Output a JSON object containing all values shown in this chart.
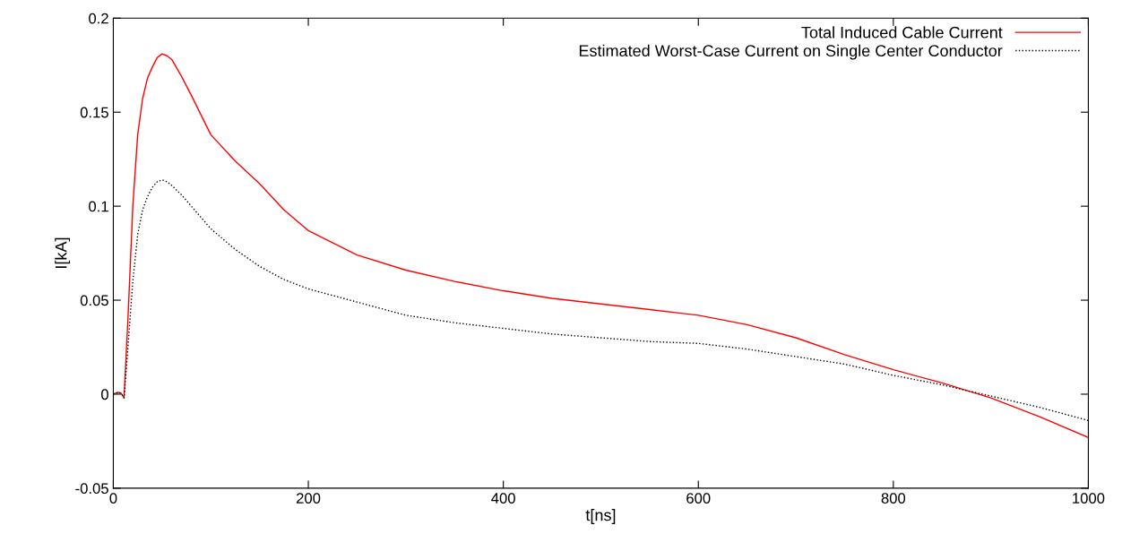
{
  "chart_data": {
    "type": "line",
    "xlabel": "t[ns]",
    "ylabel": "I[kA]",
    "xlim": [
      0,
      1000
    ],
    "ylim": [
      -0.05,
      0.2
    ],
    "xticks": [
      0,
      200,
      400,
      600,
      800,
      1000
    ],
    "yticks": [
      -0.05,
      0,
      0.05,
      0.1,
      0.15,
      0.2
    ],
    "grid": false,
    "legend": "top right",
    "marker": "none",
    "series": [
      {
        "name": "Total Induced Cable Current",
        "color": "#ff0000",
        "line_style": "solid",
        "x": [
          0,
          5,
          8,
          11,
          15,
          20,
          25,
          30,
          35,
          40,
          45,
          50,
          55,
          60,
          70,
          80,
          100,
          125,
          150,
          175,
          200,
          250,
          300,
          350,
          400,
          450,
          500,
          550,
          600,
          650,
          700,
          750,
          800,
          850,
          900,
          950,
          1000
        ],
        "values": [
          0,
          0.001,
          0.0005,
          -0.002,
          0.04,
          0.1,
          0.138,
          0.157,
          0.168,
          0.174,
          0.179,
          0.181,
          0.18,
          0.178,
          0.169,
          0.159,
          0.138,
          0.124,
          0.112,
          0.098,
          0.087,
          0.074,
          0.066,
          0.06,
          0.055,
          0.051,
          0.048,
          0.045,
          0.042,
          0.037,
          0.03,
          0.021,
          0.013,
          0.006,
          -0.002,
          -0.012,
          -0.023
        ]
      },
      {
        "name": "Estimated Worst-Case Current on Single Center Conductor",
        "color": "#000000",
        "line_style": "dotted",
        "x": [
          0,
          5,
          8,
          11,
          15,
          20,
          25,
          30,
          35,
          40,
          45,
          50,
          55,
          60,
          70,
          80,
          100,
          125,
          150,
          175,
          200,
          250,
          300,
          350,
          400,
          450,
          500,
          550,
          600,
          650,
          700,
          750,
          800,
          850,
          900,
          950,
          1000
        ],
        "values": [
          0,
          0.001,
          0.0005,
          -0.002,
          0.025,
          0.06,
          0.085,
          0.098,
          0.105,
          0.11,
          0.113,
          0.114,
          0.113,
          0.111,
          0.106,
          0.1,
          0.088,
          0.077,
          0.068,
          0.061,
          0.056,
          0.049,
          0.042,
          0.038,
          0.035,
          0.032,
          0.03,
          0.028,
          0.027,
          0.024,
          0.02,
          0.016,
          0.01,
          0.005,
          -0.001,
          -0.007,
          -0.014
        ]
      }
    ]
  }
}
